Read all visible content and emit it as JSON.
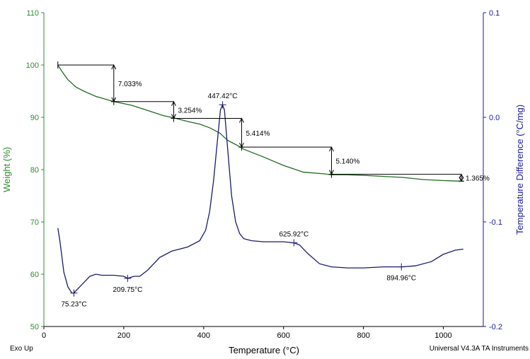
{
  "chart_data": {
    "type": "line",
    "xlabel": "Temperature (°C)",
    "ylabel_left": "Weight (%)",
    "ylabel_right": "Temperature Difference (°C/mg)",
    "xlim": [
      0,
      1100
    ],
    "ylim_left": [
      50,
      110
    ],
    "ylim_right": [
      -0.2,
      0.1
    ],
    "x_ticks": [
      0,
      200,
      400,
      600,
      800,
      1000
    ],
    "y_left_ticks": [
      50,
      60,
      70,
      80,
      90,
      100,
      110
    ],
    "y_right_ticks": [
      0.1,
      0.0,
      -0.1,
      -0.2
    ],
    "y_right_tick_labels": [
      "0.1",
      "0.0",
      "-0.1",
      "-0.2"
    ],
    "colors": {
      "weight": "#1f6b1f",
      "dta": "#1a1a6e",
      "left_axis": "#2e8b2e",
      "right_axis": "#1a1a9c",
      "annotation": "#000000"
    },
    "series": [
      {
        "name": "Weight (%)",
        "axis": "left",
        "x": [
          35,
          45,
          60,
          80,
          100,
          130,
          175,
          220,
          260,
          300,
          325,
          360,
          390,
          415,
          440,
          460,
          480,
          500,
          550,
          600,
          650,
          700,
          720,
          760,
          800,
          850,
          900,
          950,
          1000,
          1040,
          1050
        ],
        "y": [
          100,
          98.8,
          97.2,
          95.8,
          95.0,
          94.0,
          93.0,
          92.3,
          91.3,
          90.3,
          89.9,
          89.2,
          88.7,
          88.0,
          87.0,
          85.6,
          84.8,
          83.9,
          82.4,
          80.8,
          79.5,
          79.2,
          79.0,
          79.0,
          78.9,
          78.7,
          78.5,
          78.1,
          77.9,
          77.8,
          77.8
        ]
      },
      {
        "name": "Temperature Difference (°C/mg)",
        "axis": "right",
        "x": [
          35,
          40,
          50,
          60,
          70,
          75,
          85,
          100,
          115,
          130,
          145,
          175,
          200,
          210,
          225,
          240,
          260,
          290,
          320,
          360,
          390,
          405,
          415,
          425,
          435,
          442,
          447,
          452,
          460,
          470,
          480,
          490,
          500,
          520,
          550,
          600,
          626,
          640,
          660,
          690,
          720,
          760,
          800,
          850,
          895,
          930,
          970,
          1000,
          1030,
          1050
        ],
        "y": [
          -0.106,
          -0.118,
          -0.148,
          -0.162,
          -0.168,
          -0.168,
          -0.164,
          -0.158,
          -0.152,
          -0.15,
          -0.151,
          -0.151,
          -0.152,
          -0.154,
          -0.152,
          -0.152,
          -0.146,
          -0.134,
          -0.128,
          -0.124,
          -0.118,
          -0.108,
          -0.09,
          -0.06,
          -0.02,
          0.007,
          0.012,
          0.007,
          -0.03,
          -0.075,
          -0.1,
          -0.111,
          -0.116,
          -0.118,
          -0.119,
          -0.119,
          -0.12,
          -0.122,
          -0.13,
          -0.14,
          -0.143,
          -0.144,
          -0.144,
          -0.143,
          -0.143,
          -0.142,
          -0.138,
          -0.131,
          -0.127,
          -0.126
        ]
      }
    ],
    "step_annotations": [
      {
        "label": "7.033%",
        "x_start": 35,
        "x_end": 175,
        "y_top": 100,
        "y_bottom": 93
      },
      {
        "label": "3.254%",
        "x_start": 175,
        "x_end": 325,
        "y_top": 93,
        "y_bottom": 89.8
      },
      {
        "label": "5.414%",
        "x_start": 325,
        "x_end": 495,
        "y_top": 89.8,
        "y_bottom": 84.3
      },
      {
        "label": "5.140%",
        "x_start": 495,
        "x_end": 720,
        "y_top": 84.3,
        "y_bottom": 79.1
      },
      {
        "label": "1.365%",
        "x_start": 720,
        "x_end": 1045,
        "y_top": 79.1,
        "y_bottom": 77.8
      }
    ],
    "peak_annotations": [
      {
        "label": "447.42°C",
        "x": 447.42,
        "y": 0.012,
        "pos": "above"
      },
      {
        "label": "75.23°C",
        "x": 75.23,
        "y": -0.168,
        "pos": "below"
      },
      {
        "label": "209.75°C",
        "x": 209.75,
        "y": -0.154,
        "pos": "below"
      },
      {
        "label": "625.92°C",
        "x": 625.92,
        "y": -0.12,
        "pos": "above"
      },
      {
        "label": "894.96°C",
        "x": 894.96,
        "y": -0.143,
        "pos": "below"
      }
    ]
  },
  "footer": {
    "left": "Exo Up",
    "right": "Universal V4.3A TA Instruments"
  }
}
